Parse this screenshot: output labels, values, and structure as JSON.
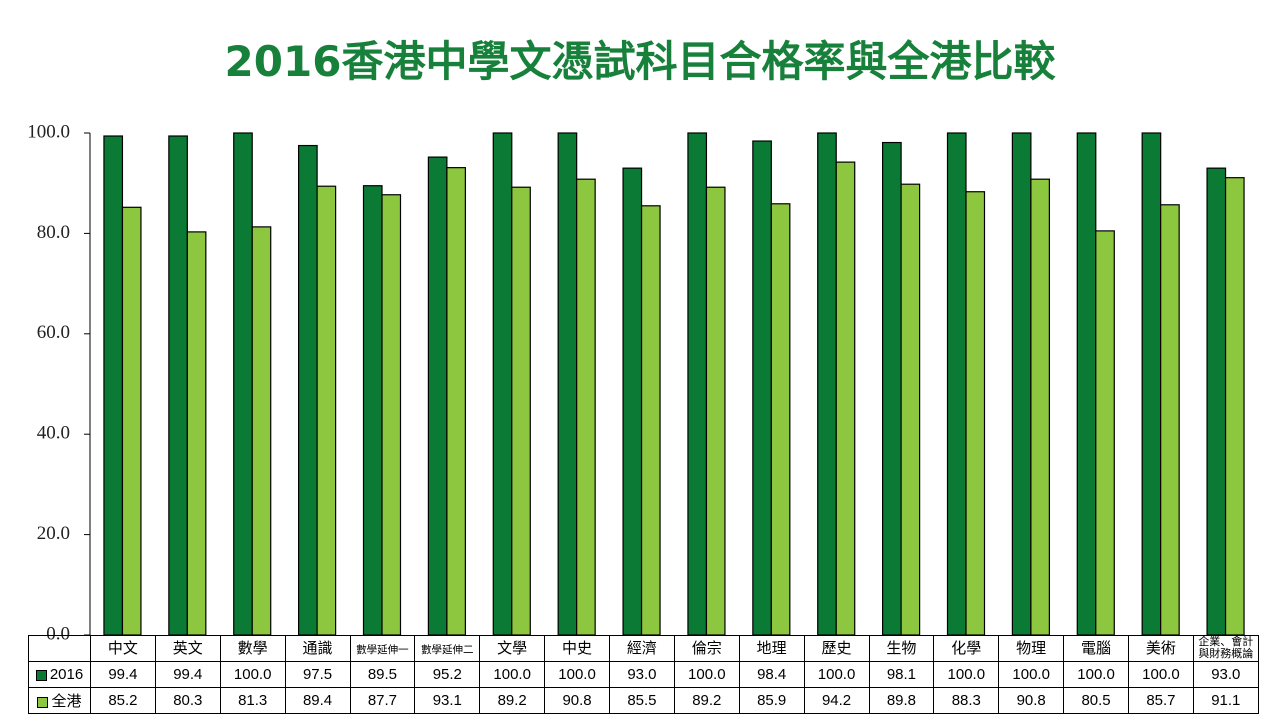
{
  "chart_data": {
    "type": "bar",
    "title": "2016香港中學文憑試科目合格率與全港比較",
    "categories": [
      "中文",
      "英文",
      "數學",
      "通識",
      "數學延伸一",
      "數學延伸二",
      "文學",
      "中史",
      "經濟",
      "倫宗",
      "地理",
      "歷史",
      "生物",
      "化學",
      "物理",
      "電腦",
      "美術",
      "企業、會計與財務概論"
    ],
    "series": [
      {
        "name": "2016",
        "color": "#0b7a35",
        "values": [
          99.4,
          99.4,
          100.0,
          97.5,
          89.5,
          95.2,
          100.0,
          100.0,
          93.0,
          100.0,
          98.4,
          100.0,
          98.1,
          100.0,
          100.0,
          100.0,
          100.0,
          93.0
        ],
        "value_labels": [
          "99.4",
          "99.4",
          "100.0",
          "97.5",
          "89.5",
          "95.2",
          "100.0",
          "100.0",
          "93.0",
          "100.0",
          "98.4",
          "100.0",
          "98.1",
          "100.0",
          "100.0",
          "100.0",
          "100.0",
          "93.0"
        ]
      },
      {
        "name": "全港",
        "color": "#8dc63f",
        "values": [
          85.2,
          80.3,
          81.3,
          89.4,
          87.7,
          93.1,
          89.2,
          90.8,
          85.5,
          89.2,
          85.9,
          94.2,
          89.8,
          88.3,
          90.8,
          80.5,
          85.7,
          91.1
        ],
        "value_labels": [
          "85.2",
          "80.3",
          "81.3",
          "89.4",
          "87.7",
          "93.1",
          "89.2",
          "90.8",
          "85.5",
          "89.2",
          "85.9",
          "94.2",
          "89.8",
          "88.3",
          "90.8",
          "80.5",
          "85.7",
          "91.1"
        ]
      }
    ],
    "ylim": [
      0,
      100
    ],
    "yticks": [
      {
        "value": 0,
        "label": "0.0"
      },
      {
        "value": 20,
        "label": "20.0"
      },
      {
        "value": 40,
        "label": "40.0"
      },
      {
        "value": 60,
        "label": "60.0"
      },
      {
        "value": 80,
        "label": "80.0"
      },
      {
        "value": 100,
        "label": "100.0"
      }
    ],
    "grid": false
  }
}
